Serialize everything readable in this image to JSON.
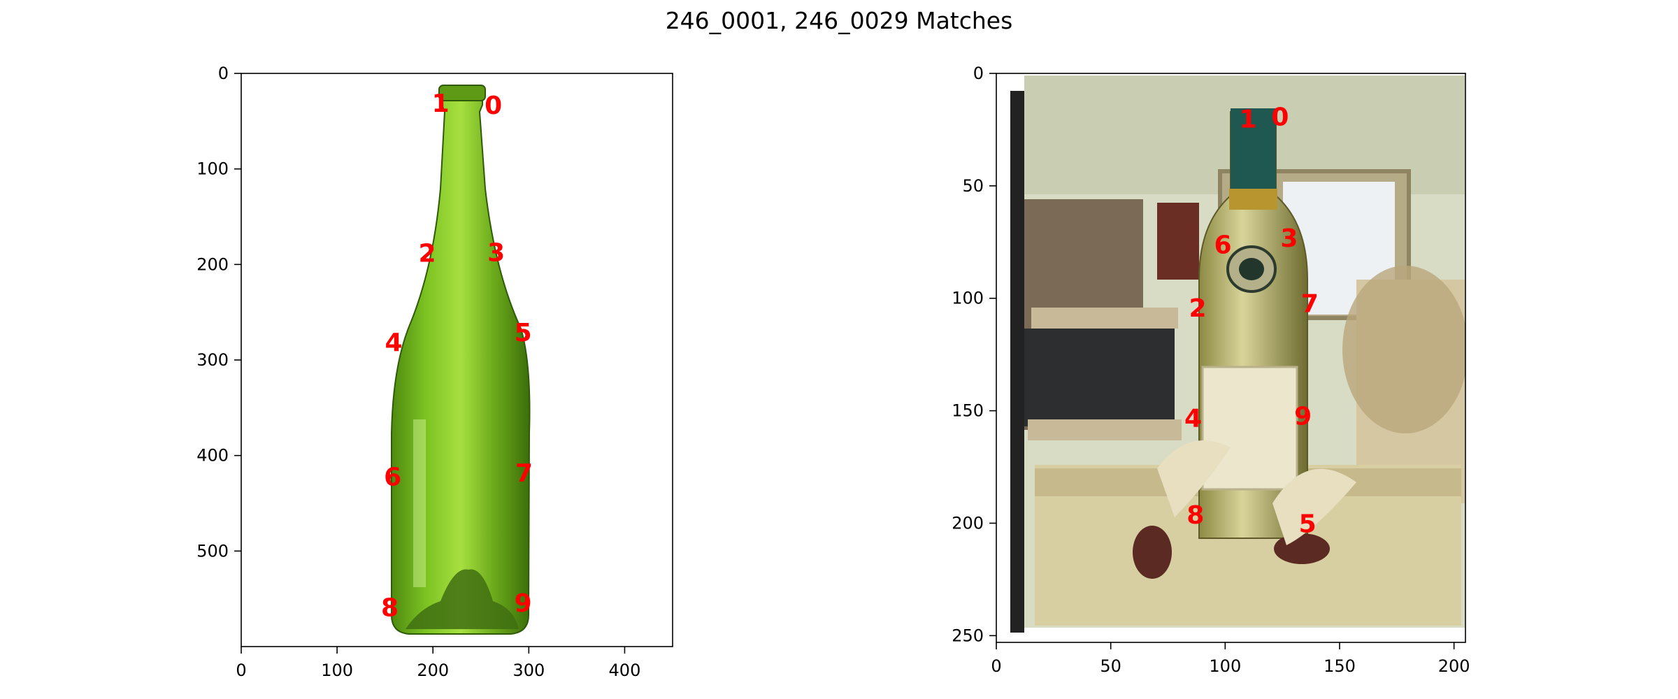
{
  "figure": {
    "title": "246_0001, 246_0029 Matches"
  },
  "chart_data": [
    {
      "type": "scatter",
      "image": "green glass wine bottle on white background",
      "xlim": [
        0,
        450
      ],
      "ylim": [
        600,
        0
      ],
      "xticks": [
        0,
        100,
        200,
        300,
        400
      ],
      "yticks": [
        0,
        100,
        200,
        300,
        400,
        500
      ],
      "grid": false,
      "marker_color": "#ff0000",
      "points": [
        {
          "label": "0",
          "x": 263,
          "y": 35
        },
        {
          "label": "1",
          "x": 208,
          "y": 33
        },
        {
          "label": "2",
          "x": 194,
          "y": 190
        },
        {
          "label": "3",
          "x": 266,
          "y": 189
        },
        {
          "label": "4",
          "x": 159,
          "y": 283
        },
        {
          "label": "5",
          "x": 294,
          "y": 273
        },
        {
          "label": "6",
          "x": 158,
          "y": 424
        },
        {
          "label": "7",
          "x": 295,
          "y": 420
        },
        {
          "label": "8",
          "x": 155,
          "y": 561
        },
        {
          "label": "9",
          "x": 294,
          "y": 556
        }
      ]
    },
    {
      "type": "scatter",
      "image": "wine bottle on tray in a shop with baskets and shelves",
      "xlim": [
        0,
        205
      ],
      "ylim": [
        253,
        0
      ],
      "xticks": [
        0,
        50,
        100,
        150,
        200
      ],
      "yticks": [
        0,
        50,
        100,
        150,
        200,
        250
      ],
      "grid": false,
      "marker_color": "#ff0000",
      "points": [
        {
          "label": "0",
          "x": 124,
          "y": 20
        },
        {
          "label": "1",
          "x": 110,
          "y": 21
        },
        {
          "label": "2",
          "x": 88,
          "y": 105
        },
        {
          "label": "3",
          "x": 128,
          "y": 74
        },
        {
          "label": "4",
          "x": 86,
          "y": 154
        },
        {
          "label": "5",
          "x": 136,
          "y": 201
        },
        {
          "label": "6",
          "x": 99,
          "y": 77
        },
        {
          "label": "7",
          "x": 137,
          "y": 103
        },
        {
          "label": "8",
          "x": 87,
          "y": 197
        },
        {
          "label": "9",
          "x": 134,
          "y": 153
        }
      ]
    }
  ]
}
